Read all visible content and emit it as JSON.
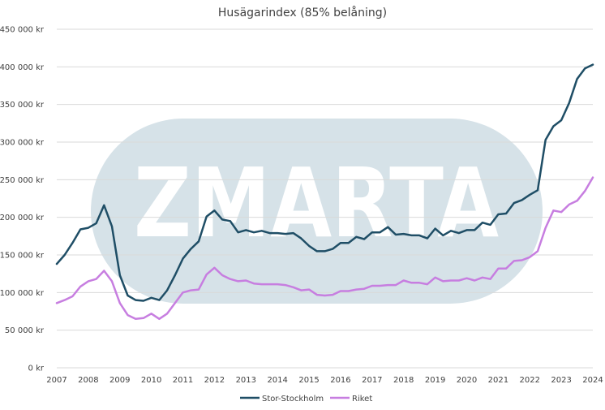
{
  "chart_data": {
    "type": "line",
    "title": "Husägarindex (85% belåning)",
    "xlabel": "",
    "ylabel": "",
    "ylim": [
      0,
      450000
    ],
    "xlim": [
      2007,
      2024
    ],
    "grid": true,
    "legend_position": "bottom",
    "y_ticks": [
      0,
      50000,
      100000,
      150000,
      200000,
      250000,
      300000,
      350000,
      400000,
      450000
    ],
    "y_tick_labels": [
      "0 kr",
      "50 000 kr",
      "100 000 kr",
      "150 000 kr",
      "200 000 kr",
      "250 000 kr",
      "300 000 kr",
      "350 000 kr",
      "400 000 kr",
      "450 000 kr"
    ],
    "x_ticks": [
      2007,
      2008,
      2009,
      2010,
      2011,
      2012,
      2013,
      2014,
      2015,
      2016,
      2017,
      2018,
      2019,
      2020,
      2021,
      2022,
      2023,
      2024
    ],
    "x_tick_labels": [
      "2007",
      "2008",
      "2009",
      "2010",
      "2011",
      "2012",
      "2013",
      "2014",
      "2015",
      "2016",
      "2017",
      "2018",
      "2019",
      "2020",
      "2021",
      "2022",
      "2023",
      "2024"
    ],
    "watermark": "ZMARTA",
    "colors": {
      "stor_stockholm": "#1f4e66",
      "riket": "#c77ee0",
      "watermark_bg": "#d6e2e8",
      "watermark_text": "#ffffff"
    },
    "series": [
      {
        "name": "Stor-Stockholm",
        "points": [
          [
            2007.0,
            138000
          ],
          [
            2007.25,
            150000
          ],
          [
            2007.5,
            166000
          ],
          [
            2007.75,
            184000
          ],
          [
            2008.0,
            186000
          ],
          [
            2008.25,
            192000
          ],
          [
            2008.5,
            216000
          ],
          [
            2008.75,
            188000
          ],
          [
            2009.0,
            123000
          ],
          [
            2009.25,
            96000
          ],
          [
            2009.5,
            90000
          ],
          [
            2009.75,
            89000
          ],
          [
            2010.0,
            93000
          ],
          [
            2010.25,
            90000
          ],
          [
            2010.5,
            103000
          ],
          [
            2010.75,
            123000
          ],
          [
            2011.0,
            145000
          ],
          [
            2011.25,
            158000
          ],
          [
            2011.5,
            168000
          ],
          [
            2011.75,
            201000
          ],
          [
            2012.0,
            209000
          ],
          [
            2012.25,
            197000
          ],
          [
            2012.5,
            195000
          ],
          [
            2012.75,
            180000
          ],
          [
            2013.0,
            183000
          ],
          [
            2013.25,
            180000
          ],
          [
            2013.5,
            182000
          ],
          [
            2013.75,
            179000
          ],
          [
            2014.0,
            179000
          ],
          [
            2014.25,
            178000
          ],
          [
            2014.5,
            179000
          ],
          [
            2014.75,
            172000
          ],
          [
            2015.0,
            162000
          ],
          [
            2015.25,
            155000
          ],
          [
            2015.5,
            155000
          ],
          [
            2015.75,
            158000
          ],
          [
            2016.0,
            166000
          ],
          [
            2016.25,
            166000
          ],
          [
            2016.5,
            174000
          ],
          [
            2016.75,
            171000
          ],
          [
            2017.0,
            180000
          ],
          [
            2017.25,
            180000
          ],
          [
            2017.5,
            187000
          ],
          [
            2017.75,
            177000
          ],
          [
            2018.0,
            178000
          ],
          [
            2018.25,
            176000
          ],
          [
            2018.5,
            176000
          ],
          [
            2018.75,
            172000
          ],
          [
            2019.0,
            185000
          ],
          [
            2019.25,
            176000
          ],
          [
            2019.5,
            182000
          ],
          [
            2019.75,
            179000
          ],
          [
            2020.0,
            183000
          ],
          [
            2020.25,
            183000
          ],
          [
            2020.5,
            193000
          ],
          [
            2020.75,
            190000
          ],
          [
            2021.0,
            204000
          ],
          [
            2021.25,
            205000
          ],
          [
            2021.5,
            219000
          ],
          [
            2021.75,
            223000
          ],
          [
            2022.0,
            230000
          ],
          [
            2022.25,
            236000
          ],
          [
            2022.5,
            303000
          ],
          [
            2022.75,
            321000
          ],
          [
            2023.0,
            329000
          ],
          [
            2023.25,
            352000
          ],
          [
            2023.5,
            384000
          ],
          [
            2023.75,
            398000
          ],
          [
            2024.0,
            403000
          ]
        ]
      },
      {
        "name": "Riket",
        "points": [
          [
            2007.0,
            86000
          ],
          [
            2007.25,
            90000
          ],
          [
            2007.5,
            95000
          ],
          [
            2007.75,
            108000
          ],
          [
            2008.0,
            115000
          ],
          [
            2008.25,
            118000
          ],
          [
            2008.5,
            129000
          ],
          [
            2008.75,
            115000
          ],
          [
            2009.0,
            86000
          ],
          [
            2009.25,
            70000
          ],
          [
            2009.5,
            65000
          ],
          [
            2009.75,
            66000
          ],
          [
            2010.0,
            72000
          ],
          [
            2010.25,
            65000
          ],
          [
            2010.5,
            72000
          ],
          [
            2010.75,
            86000
          ],
          [
            2011.0,
            100000
          ],
          [
            2011.25,
            103000
          ],
          [
            2011.5,
            104000
          ],
          [
            2011.75,
            124000
          ],
          [
            2012.0,
            133000
          ],
          [
            2012.25,
            123000
          ],
          [
            2012.5,
            118000
          ],
          [
            2012.75,
            115000
          ],
          [
            2013.0,
            116000
          ],
          [
            2013.25,
            112000
          ],
          [
            2013.5,
            111000
          ],
          [
            2013.75,
            111000
          ],
          [
            2014.0,
            111000
          ],
          [
            2014.25,
            110000
          ],
          [
            2014.5,
            107000
          ],
          [
            2014.75,
            103000
          ],
          [
            2015.0,
            104000
          ],
          [
            2015.25,
            97000
          ],
          [
            2015.5,
            96000
          ],
          [
            2015.75,
            97000
          ],
          [
            2016.0,
            102000
          ],
          [
            2016.25,
            102000
          ],
          [
            2016.5,
            104000
          ],
          [
            2016.75,
            105000
          ],
          [
            2017.0,
            109000
          ],
          [
            2017.25,
            109000
          ],
          [
            2017.5,
            110000
          ],
          [
            2017.75,
            110000
          ],
          [
            2018.0,
            116000
          ],
          [
            2018.25,
            113000
          ],
          [
            2018.5,
            113000
          ],
          [
            2018.75,
            111000
          ],
          [
            2019.0,
            120000
          ],
          [
            2019.25,
            115000
          ],
          [
            2019.5,
            116000
          ],
          [
            2019.75,
            116000
          ],
          [
            2020.0,
            119000
          ],
          [
            2020.25,
            116000
          ],
          [
            2020.5,
            120000
          ],
          [
            2020.75,
            118000
          ],
          [
            2021.0,
            132000
          ],
          [
            2021.25,
            132000
          ],
          [
            2021.5,
            142000
          ],
          [
            2021.75,
            143000
          ],
          [
            2022.0,
            147000
          ],
          [
            2022.25,
            155000
          ],
          [
            2022.5,
            186000
          ],
          [
            2022.75,
            209000
          ],
          [
            2023.0,
            207000
          ],
          [
            2023.25,
            217000
          ],
          [
            2023.5,
            222000
          ],
          [
            2023.75,
            235000
          ],
          [
            2024.0,
            253000
          ]
        ]
      }
    ]
  }
}
